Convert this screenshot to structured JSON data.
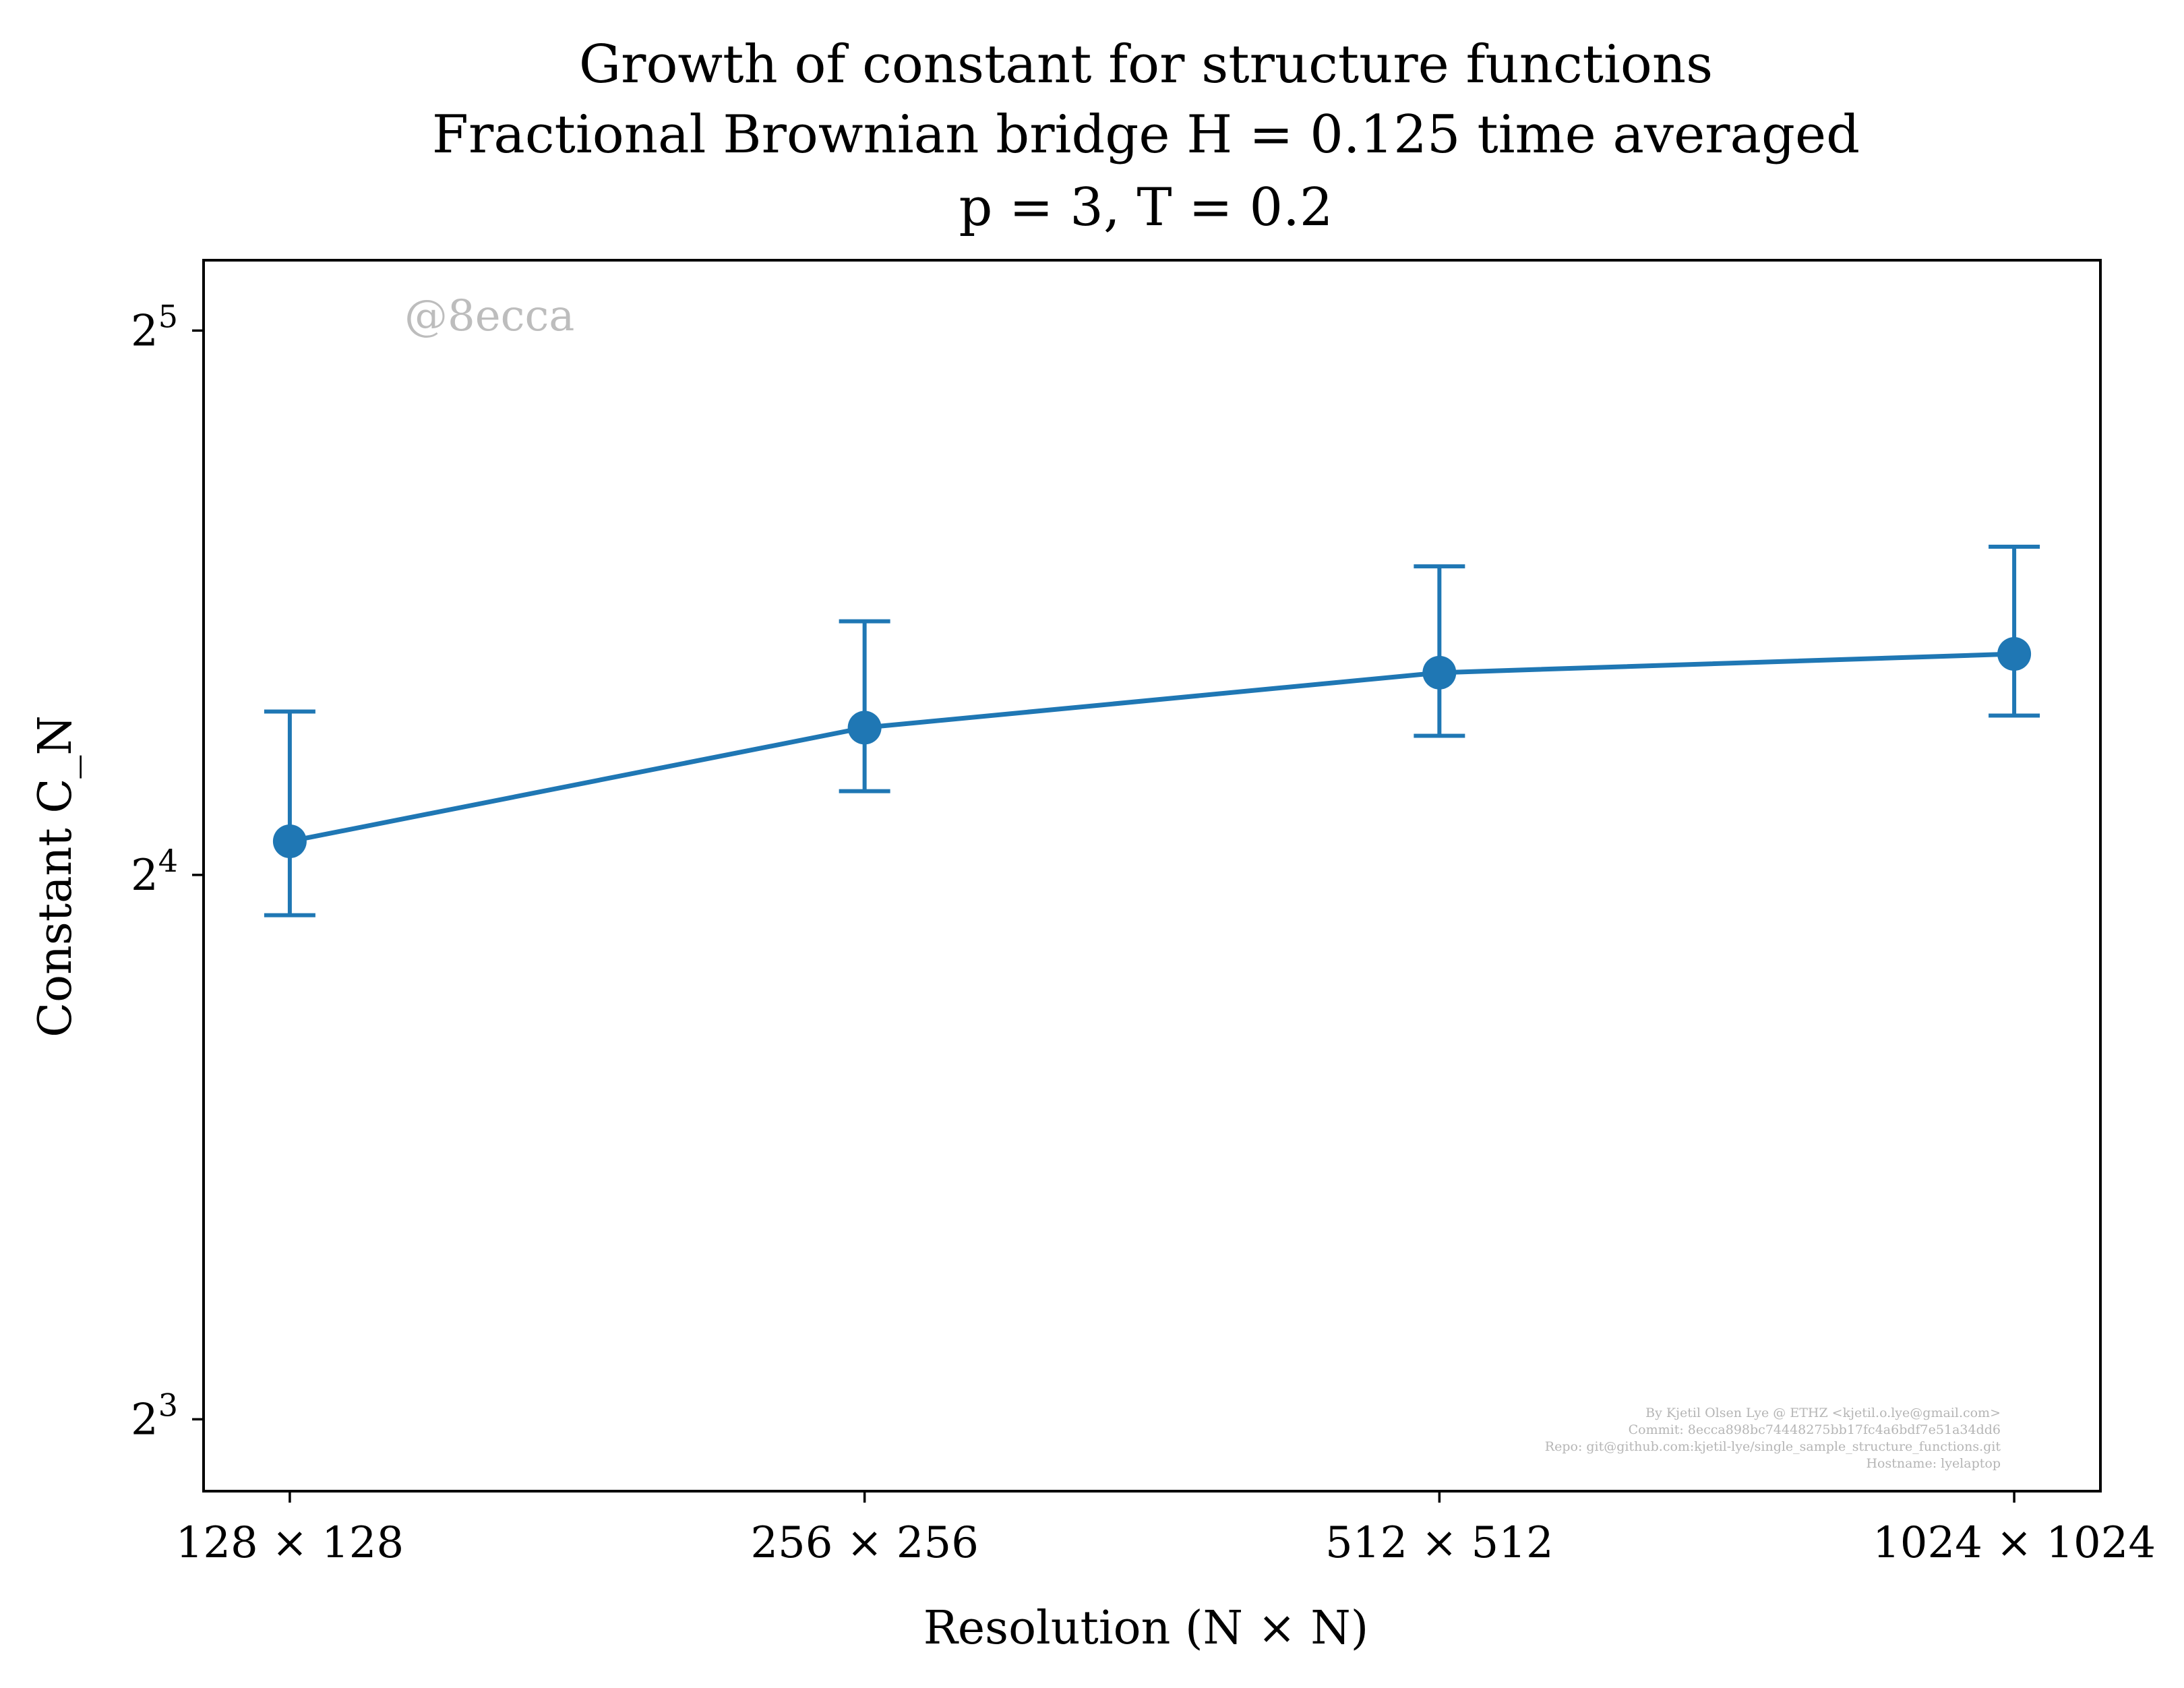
{
  "chart_data": {
    "type": "line",
    "title": [
      "Growth of constant for structure functions",
      "Fractional Brownian bridge H = 0.125 time averaged",
      "p = 3, T = 0.2"
    ],
    "xlabel": "Resolution (N × N)",
    "ylabel": "Constant C_N",
    "categories": [
      "128 × 128",
      "256 × 256",
      "512 × 512",
      "1024 × 1024"
    ],
    "x": [
      128,
      256,
      512,
      1024
    ],
    "x_scale": "log2",
    "y_scale": "log2",
    "yticks": [
      {
        "value": 8,
        "label": "2^3"
      },
      {
        "value": 16,
        "label": "2^4"
      },
      {
        "value": 32,
        "label": "2^5"
      }
    ],
    "ylim": [
      7.3,
      35.0
    ],
    "series": [
      {
        "values": [
          16.7,
          19.3,
          20.7,
          21.2
        ],
        "err_low": [
          15.2,
          17.8,
          19.1,
          19.6
        ],
        "err_high": [
          19.7,
          22.1,
          23.7,
          24.3
        ],
        "color": "#1f77b4"
      }
    ],
    "grid": false,
    "legend": "none",
    "watermark": "@8ecca",
    "footer": [
      "By Kjetil Olsen Lye @ ETHZ <kjetil.o.lye@gmail.com>",
      "Commit: 8ecca898bc74448275bb17fc4a6bdf7e51a34dd6",
      "Repo: git@github.com:kjetil-lye/single_sample_structure_functions.git",
      "Hostname: lyelaptop"
    ]
  }
}
